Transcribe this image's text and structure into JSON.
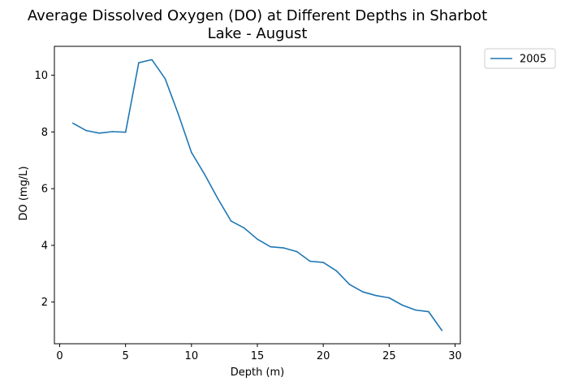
{
  "chart_data": {
    "type": "line",
    "title_line1": "Average Dissolved Oxygen (DO) at Different Depths in Sharbot",
    "title_line2": "Lake - August",
    "xlabel": "Depth (m)",
    "ylabel": "DO (mg/L)",
    "xlim": [
      -0.4,
      30.4
    ],
    "ylim": [
      0.53,
      11.02
    ],
    "xticks": [
      0,
      5,
      10,
      15,
      20,
      25,
      30
    ],
    "yticks": [
      2,
      4,
      6,
      8,
      10
    ],
    "legend_position": "outside-top-right",
    "grid": false,
    "series": [
      {
        "name": "2005",
        "color": "#1f77b4",
        "x": [
          1,
          2,
          3,
          4,
          5,
          6,
          7,
          8,
          9,
          10,
          11,
          12,
          13,
          14,
          15,
          16,
          17,
          18,
          19,
          20,
          21,
          22,
          23,
          24,
          25,
          26,
          27,
          28,
          29
        ],
        "y": [
          8.31,
          8.05,
          7.96,
          8.01,
          7.99,
          10.44,
          10.55,
          9.88,
          8.63,
          7.28,
          6.5,
          5.65,
          4.86,
          4.61,
          4.22,
          3.95,
          3.91,
          3.78,
          3.44,
          3.4,
          3.1,
          2.62,
          2.36,
          2.23,
          2.15,
          1.89,
          1.72,
          1.66,
          1.0
        ]
      }
    ]
  }
}
